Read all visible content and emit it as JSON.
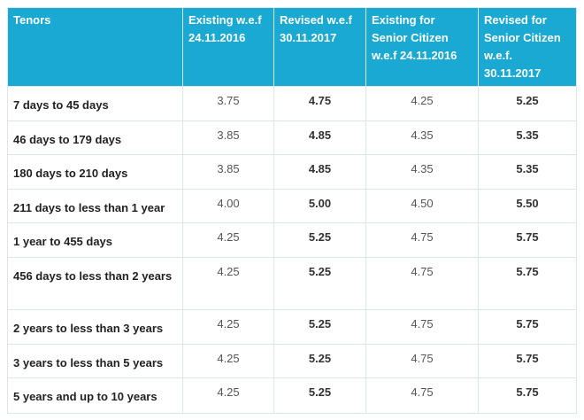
{
  "table": {
    "headers": [
      "Tenors",
      "Existing w.e.f 24.11.2016",
      "Revised w.e.f 30.11.2017",
      "Existing for Senior Citizen w.e.f 24.11.2016",
      "Revised for Senior Citizen w.e.f. 30.11.2017"
    ],
    "rows": [
      {
        "tenor": "7 days to 45 days",
        "existing": "3.75",
        "revised": "4.75",
        "existing_senior": "4.25",
        "revised_senior": "5.25"
      },
      {
        "tenor": "46 days to 179 days",
        "existing": "3.85",
        "revised": "4.85",
        "existing_senior": "4.35",
        "revised_senior": "5.35"
      },
      {
        "tenor": "180 days to 210 days",
        "existing": "3.85",
        "revised": "4.85",
        "existing_senior": "4.35",
        "revised_senior": "5.35"
      },
      {
        "tenor": "211 days to less than 1 year",
        "existing": "4.00",
        "revised": "5.00",
        "existing_senior": "4.50",
        "revised_senior": "5.50"
      },
      {
        "tenor": "1 year to 455 days",
        "existing": "4.25",
        "revised": "5.25",
        "existing_senior": "4.75",
        "revised_senior": "5.75"
      },
      {
        "tenor": "456 days to less than 2 years",
        "existing": "4.25",
        "revised": "5.25",
        "existing_senior": "4.75",
        "revised_senior": "5.75"
      },
      {
        "tenor": "2 years to less than 3 years",
        "existing": "4.25",
        "revised": "5.25",
        "existing_senior": "4.75",
        "revised_senior": "5.75"
      },
      {
        "tenor": "3 years to less than 5 years",
        "existing": "4.25",
        "revised": "5.25",
        "existing_senior": "4.75",
        "revised_senior": "5.75"
      },
      {
        "tenor": "5 years and up to 10 years",
        "existing": "4.25",
        "revised": "5.25",
        "existing_senior": "4.75",
        "revised_senior": "5.75"
      }
    ]
  },
  "colors": {
    "header_bg": "#19a9d3",
    "header_text": "#ffffff",
    "grid": "#d9e6ea"
  }
}
